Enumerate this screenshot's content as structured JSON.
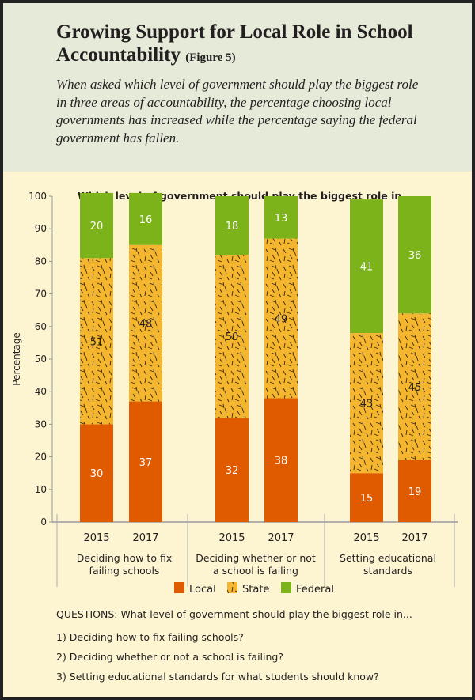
{
  "header": {
    "title": "Growing Support for Local Role in School Accountability",
    "figure_label": "(Figure 5)",
    "subtitle": "When asked which level of government should play the biggest role in three areas of accountability, the percentage choosing local governments has increased while the percentage saying the federal government has fallen."
  },
  "chart_data": {
    "type": "stacked-bar",
    "title": "Which level of government should play the biggest role in...",
    "ylabel": "Percentage",
    "ylim": [
      0,
      100
    ],
    "yticks": [
      "0",
      "10",
      "20",
      "30",
      "40",
      "50",
      "60",
      "70",
      "80",
      "90",
      "100"
    ],
    "groups": [
      {
        "label": "Deciding how to fix failing schools",
        "label_lines": [
          "Deciding how to fix",
          "failing schools"
        ],
        "years": [
          "2015",
          "2017"
        ]
      },
      {
        "label": "Deciding whether or not a school is failing",
        "label_lines": [
          "Deciding whether or not",
          "a school is failing"
        ],
        "years": [
          "2015",
          "2017"
        ]
      },
      {
        "label": "Setting educational standards",
        "label_lines": [
          "Setting educational",
          "standards"
        ],
        "years": [
          "2015",
          "2017"
        ]
      }
    ],
    "series": [
      {
        "name": "Local",
        "color": "#e05a00",
        "values": [
          30,
          37,
          32,
          38,
          15,
          19
        ]
      },
      {
        "name": "State",
        "color": "#f4b62f",
        "pattern": "dashes",
        "values": [
          51,
          48,
          50,
          49,
          43,
          45
        ]
      },
      {
        "name": "Federal",
        "color": "#7db31a",
        "values": [
          20,
          16,
          18,
          13,
          41,
          36
        ]
      }
    ],
    "legend": "bottom",
    "grid": false
  },
  "questions": {
    "intro": "QUESTIONS: What level of government should play the biggest role in...",
    "items": [
      "1) Deciding how to fix failing schools?",
      "2) Deciding whether or not a school is failing?",
      "3) Setting educational standards for what students should know?"
    ]
  }
}
